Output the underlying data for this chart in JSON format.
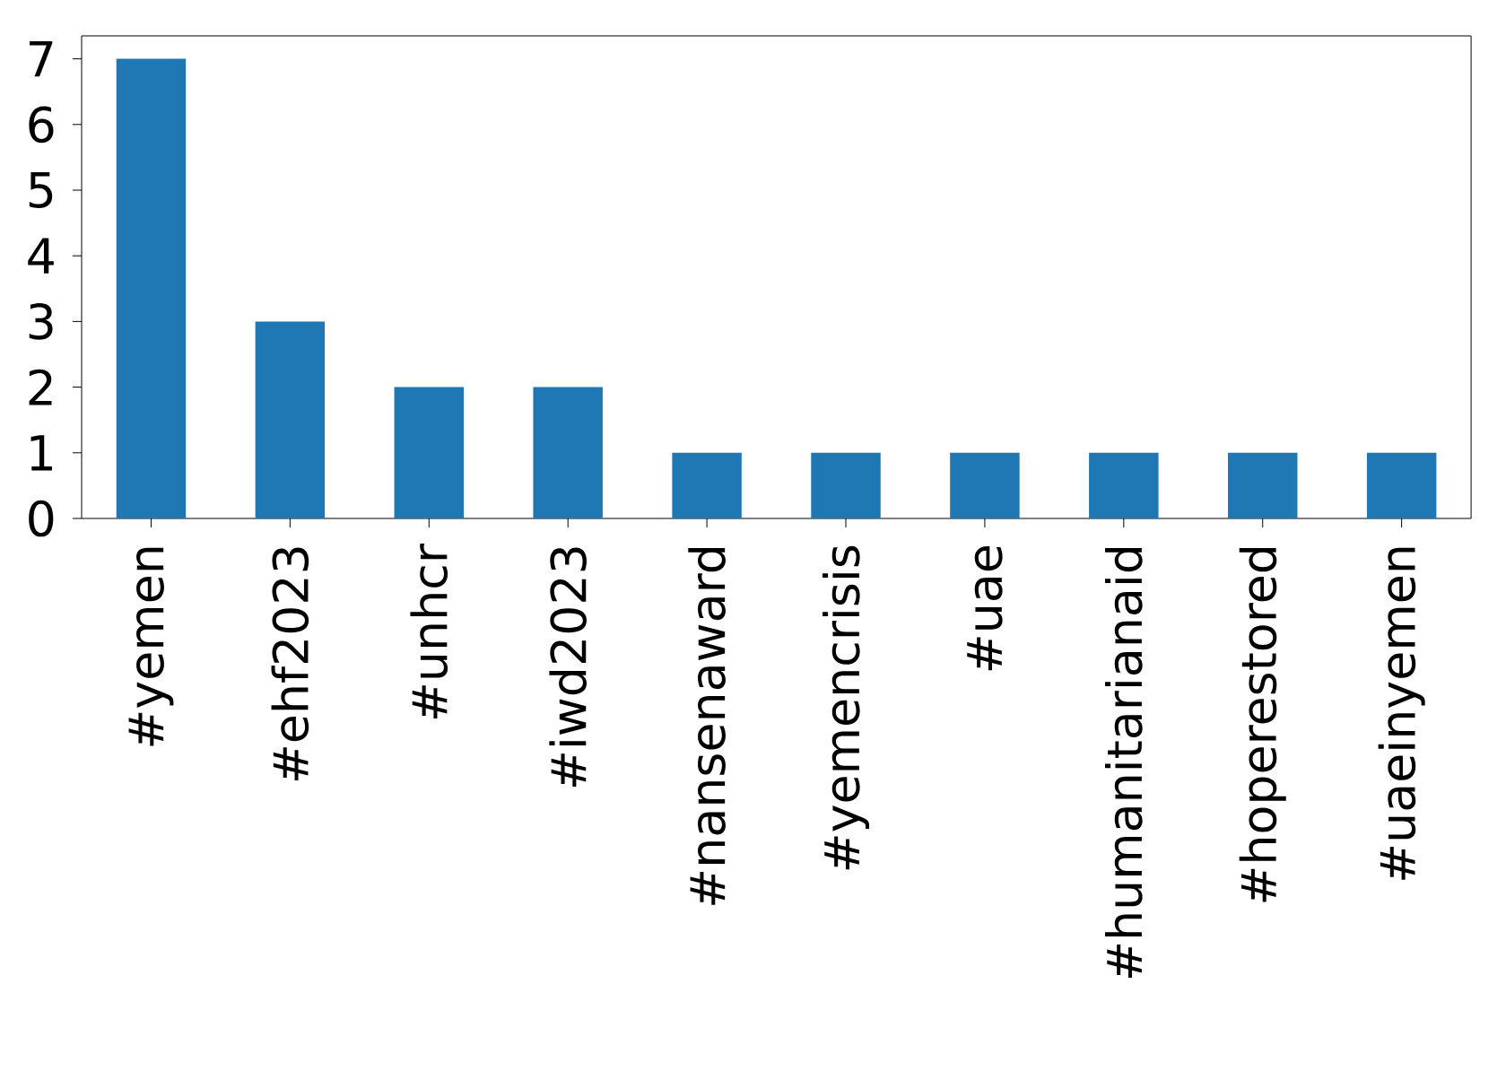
{
  "chart_data": {
    "type": "bar",
    "categories": [
      "#yemen",
      "#ehf2023",
      "#unhcr",
      "#iwd2023",
      "#nansenaward",
      "#yemencrisis",
      "#uae",
      "#humanitarianaid",
      "#hoperestored",
      "#uaeinyemen"
    ],
    "values": [
      7,
      3,
      2,
      2,
      1,
      1,
      1,
      1,
      1,
      1
    ],
    "color": "#1f77b4",
    "ylim": [
      0,
      7.35
    ],
    "yticks": [
      0,
      1,
      2,
      3,
      4,
      5,
      6,
      7
    ]
  }
}
